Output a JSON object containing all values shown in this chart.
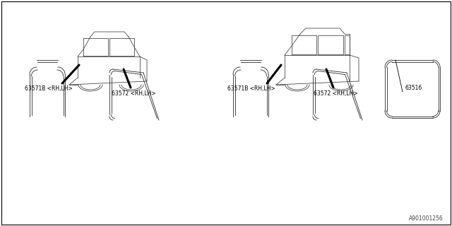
{
  "bg_color": "#ffffff",
  "line_color": "#3a3a3a",
  "label_color": "#000000",
  "thick_line_color": "#000000",
  "part_numbers": {
    "63571B": "63571B <RH,LH>",
    "63572": "63572 <RH,LH>",
    "63516": "63516"
  },
  "footer": "A901001256",
  "border_color": "#000000",
  "lw_car": 0.55,
  "lw_strip": 0.65,
  "lw_leader": 2.2,
  "font_size": 5.5
}
